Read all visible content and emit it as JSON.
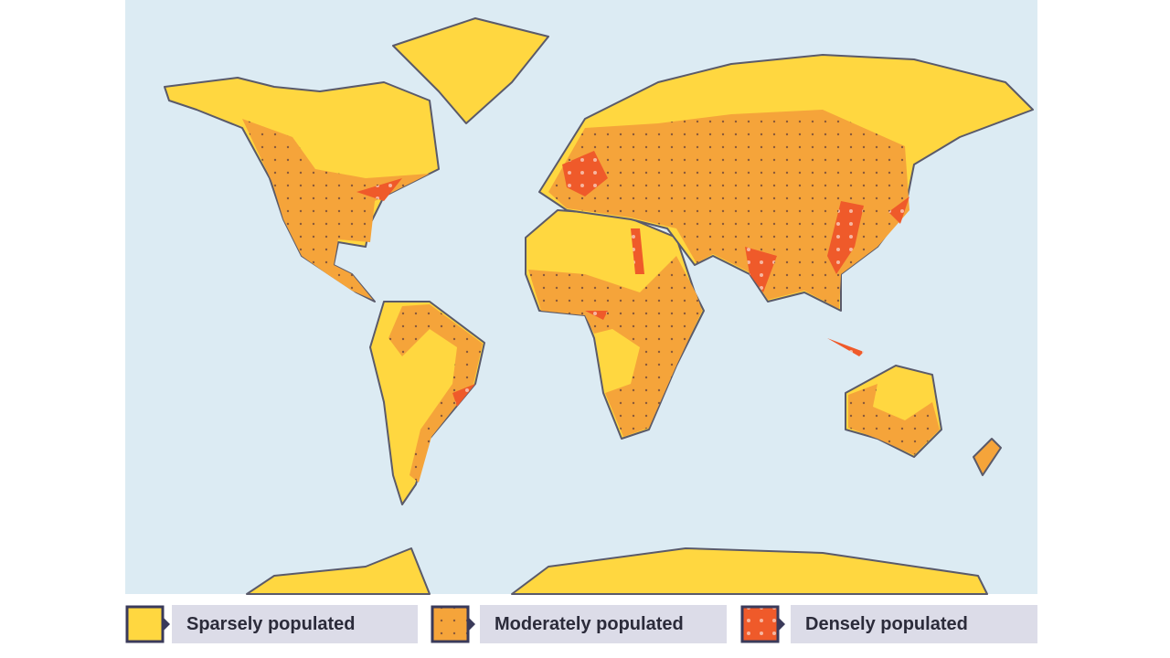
{
  "legend": {
    "items": [
      {
        "label": "Sparsely populated"
      },
      {
        "label": "Moderately populated"
      },
      {
        "label": "Densely populated"
      }
    ]
  }
}
